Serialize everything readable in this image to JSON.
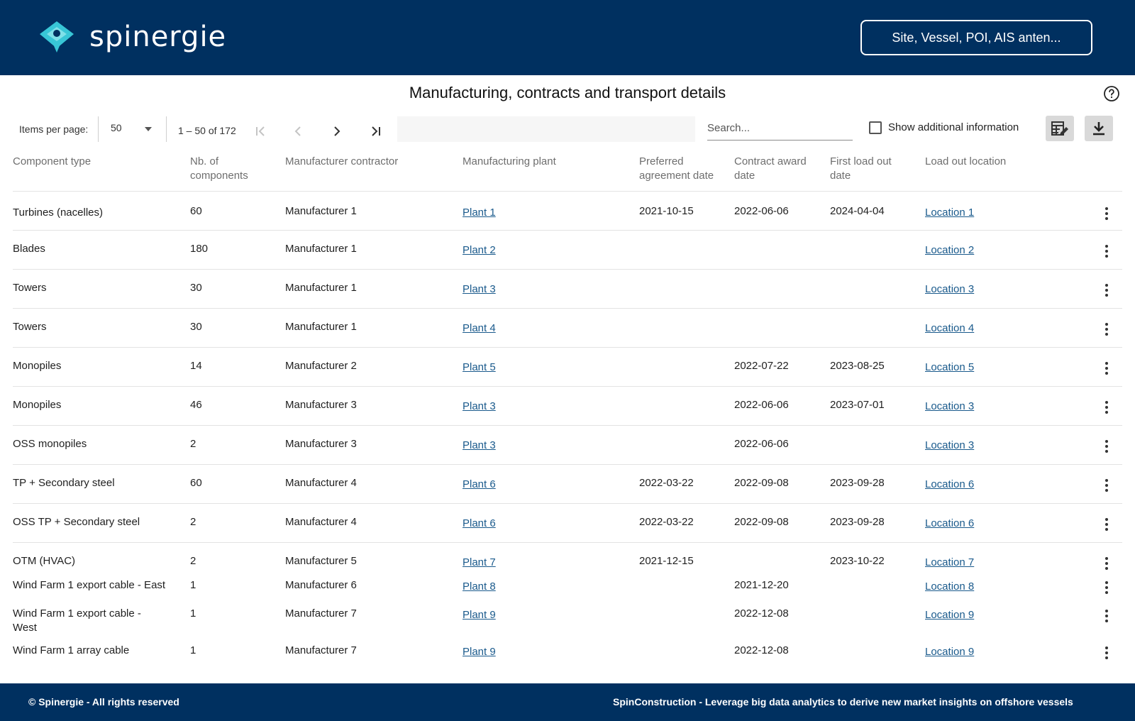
{
  "header": {
    "logo_text": "spinergie",
    "search_label": "Site, Vessel, POI, AIS anten..."
  },
  "title": "Manufacturing, contracts and transport details",
  "toolbar": {
    "items_per_page_label": "Items per page:",
    "items_per_page_value": "50",
    "range_label": "1 – 50 of 172",
    "search_placeholder": "Search...",
    "show_additional_label": "Show additional information"
  },
  "table": {
    "columns": [
      "Component type",
      "Nb. of\ncomponents",
      "Manufacturer contractor",
      "Manufacturing plant",
      "Preferred\nagreement date",
      "Contract award\ndate",
      "First load out\ndate",
      "Load out location"
    ],
    "rows": [
      {
        "component": "Turbines (nacelles)",
        "nb": "60",
        "manufacturer": "Manufacturer 1",
        "plant": "Plant 1",
        "preferred": "2021-10-15",
        "award": "2022-06-06",
        "first_load": "2024-04-04",
        "location": "Location 1"
      },
      {
        "component": "Blades",
        "nb": "180",
        "manufacturer": "Manufacturer 1",
        "plant": "Plant 2",
        "preferred": "",
        "award": "",
        "first_load": "",
        "location": "Location 2"
      },
      {
        "component": "Towers",
        "nb": "30",
        "manufacturer": "Manufacturer 1",
        "plant": "Plant 3",
        "preferred": "",
        "award": "",
        "first_load": "",
        "location": "Location 3"
      },
      {
        "component": "Towers",
        "nb": "30",
        "manufacturer": "Manufacturer 1",
        "plant": "Plant 4",
        "preferred": "",
        "award": "",
        "first_load": "",
        "location": "Location 4"
      },
      {
        "component": "Monopiles",
        "nb": "14",
        "manufacturer": "Manufacturer 2",
        "plant": "Plant 5",
        "preferred": "",
        "award": "2022-07-22",
        "first_load": "2023-08-25",
        "location": "Location 5"
      },
      {
        "component": "Monopiles",
        "nb": "46",
        "manufacturer": "Manufacturer 3",
        "plant": "Plant 3",
        "preferred": "",
        "award": "2022-06-06",
        "first_load": "2023-07-01",
        "location": "Location 3"
      },
      {
        "component": "OSS monopiles",
        "nb": "2",
        "manufacturer": "Manufacturer 3",
        "plant": "Plant 3",
        "preferred": "",
        "award": "2022-06-06",
        "first_load": "",
        "location": "Location 3"
      },
      {
        "component": "TP + Secondary steel",
        "nb": "60",
        "manufacturer": "Manufacturer 4",
        "plant": "Plant 6",
        "preferred": "2022-03-22",
        "award": "2022-09-08",
        "first_load": "2023-09-28",
        "location": "Location 6"
      },
      {
        "component": "OSS TP + Secondary steel",
        "nb": "2",
        "manufacturer": "Manufacturer 4",
        "plant": "Plant 6",
        "preferred": "2022-03-22",
        "award": "2022-09-08",
        "first_load": "2023-09-28",
        "location": "Location 6"
      },
      {
        "component": "OTM (HVAC)",
        "nb": "2",
        "manufacturer": "Manufacturer 5",
        "plant": "Plant 7",
        "preferred": "2021-12-15",
        "award": "",
        "first_load": "2023-10-22",
        "location": "Location 7"
      },
      {
        "component": "Wind Farm 1 export cable - East",
        "nb": "1",
        "manufacturer": "Manufacturer 6",
        "plant": "Plant 8",
        "preferred": "",
        "award": "2021-12-20",
        "first_load": "",
        "location": "Location 8"
      },
      {
        "component": "Wind Farm 1 export cable -\nWest",
        "nb": "1",
        "manufacturer": "Manufacturer 7",
        "plant": "Plant 9",
        "preferred": "",
        "award": "2022-12-08",
        "first_load": "",
        "location": "Location 9"
      },
      {
        "component": "Wind Farm 1 array cable",
        "nb": "1",
        "manufacturer": "Manufacturer 7",
        "plant": "Plant 9",
        "preferred": "",
        "award": "2022-12-08",
        "first_load": "",
        "location": "Location 9"
      }
    ]
  },
  "footer": {
    "left": "© Spinergie - All rights reserved",
    "right": "SpinConstruction - Leverage big data analytics to derive new market insights on offshore vessels"
  },
  "colors": {
    "brand_navy": "#003060",
    "link": "#1a5a8c",
    "logo_accent": "#38c6d6"
  }
}
